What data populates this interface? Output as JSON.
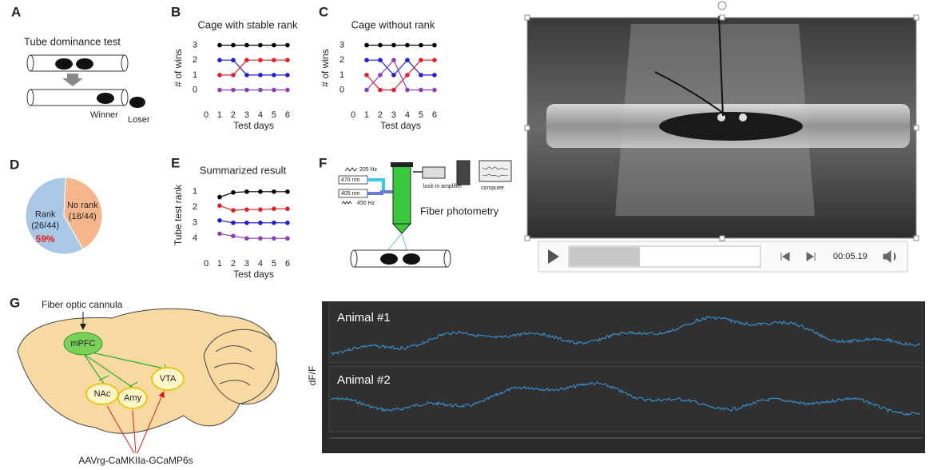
{
  "panel_labels": [
    "A",
    "B",
    "C",
    "D",
    "E",
    "F",
    "G"
  ],
  "panel_a": {
    "title": "Tube dominance test",
    "winner": "Winner",
    "loser": "Loser"
  },
  "chart_data": [
    {
      "type": "line",
      "title": "Cage with stable rank",
      "x_label": "Test days",
      "y_label": "# of wins",
      "x": [
        1,
        2,
        3,
        4,
        5,
        6
      ],
      "xlim": [
        0,
        6.3
      ],
      "xticks": [
        0,
        1,
        2,
        3,
        4,
        5,
        6
      ],
      "ylim": [
        -0.4,
        3.35
      ],
      "yticks": [
        0,
        1,
        2,
        3
      ],
      "series": [
        {
          "color": "#000000",
          "values": [
            3,
            3,
            3,
            3,
            3,
            3
          ]
        },
        {
          "color": "#1f1fd0",
          "values": [
            2,
            2,
            1,
            1,
            1,
            1
          ]
        },
        {
          "color": "#e0202a",
          "values": [
            1,
            1,
            2,
            2,
            2,
            2
          ]
        },
        {
          "color": "#8a3fb8",
          "values": [
            0,
            0,
            0,
            0,
            0,
            0
          ]
        }
      ]
    },
    {
      "type": "line",
      "title": "Cage without rank",
      "x_label": "Test days",
      "y_label": "# of wins",
      "x": [
        1,
        2,
        3,
        4,
        5,
        6
      ],
      "xlim": [
        0,
        6.3
      ],
      "xticks": [
        0,
        1,
        2,
        3,
        4,
        5,
        6
      ],
      "ylim": [
        -0.4,
        3.35
      ],
      "yticks": [
        0,
        1,
        2,
        3
      ],
      "series": [
        {
          "color": "#000000",
          "values": [
            3,
            3,
            3,
            3,
            3,
            3
          ]
        },
        {
          "color": "#1f1fd0",
          "values": [
            2,
            2,
            1,
            2,
            1,
            1
          ]
        },
        {
          "color": "#e0202a",
          "values": [
            1,
            0,
            0,
            1,
            2,
            2
          ]
        },
        {
          "color": "#8a3fb8",
          "values": [
            0,
            1,
            2,
            0,
            0,
            0
          ]
        }
      ]
    },
    {
      "type": "line",
      "title": "Summarized result",
      "x_label": "Test days",
      "y_label": "Tube test rank",
      "x": [
        1,
        2,
        3,
        4,
        5,
        6
      ],
      "xlim": [
        0,
        6.3
      ],
      "xticks": [
        0,
        1,
        2,
        3,
        4,
        5,
        6
      ],
      "ylim": [
        4.4,
        0.6
      ],
      "yticks": [
        1,
        2,
        3,
        4
      ],
      "series": [
        {
          "color": "#000000",
          "values": [
            1.35,
            1.05,
            1,
            1,
            1,
            1
          ]
        },
        {
          "color": "#e0202a",
          "values": [
            1.9,
            2.2,
            2.15,
            2.15,
            2.1,
            2.1
          ]
        },
        {
          "color": "#1f1fd0",
          "values": [
            2.85,
            3,
            3,
            3,
            3,
            3
          ]
        },
        {
          "color": "#8a3fb8",
          "values": [
            3.7,
            3.85,
            4,
            4,
            4,
            4
          ]
        }
      ]
    },
    {
      "type": "pie",
      "categories": [
        "Rank",
        "No rank"
      ],
      "values": [
        26,
        18
      ],
      "value_labels": [
        "(26/44)",
        "(18/44)"
      ],
      "colors": [
        "#a9c8e8",
        "#f7b58c"
      ],
      "annotation": "59%"
    }
  ],
  "panel_f": {
    "label": "Fiber photometry",
    "hz1": "205 Hz",
    "nm1": "470 nm",
    "nm2": "405 nm",
    "hz2": "450 Hz",
    "amplifier": "lock-in amplifier",
    "computer": "computer"
  },
  "video": {
    "time": "00:05.19"
  },
  "panel_g": {
    "cannula": "Fiber optic cannula",
    "regions": [
      "mPFC",
      "NAc",
      "Amy",
      "VTA"
    ],
    "virus": "AAVrg-CaMKIIa-GCaMP6s"
  },
  "traces": {
    "y_label": "dF/F",
    "animals": [
      "Animal #1",
      "Animal #2"
    ]
  }
}
